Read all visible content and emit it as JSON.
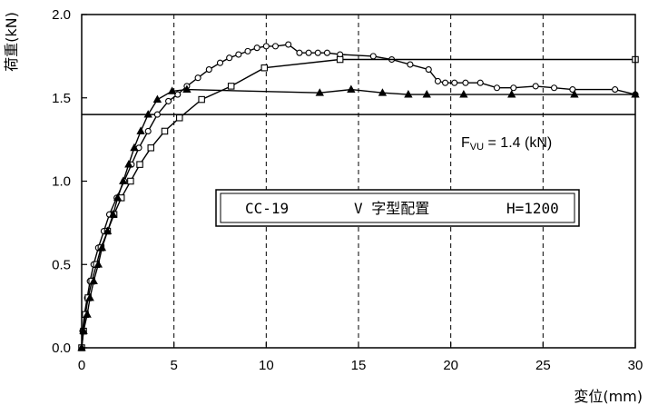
{
  "chart_data": {
    "type": "line",
    "xlabel": "変位(mm)",
    "ylabel": "荷重(kN)",
    "xlim": [
      0,
      30
    ],
    "ylim": [
      0,
      2.0
    ],
    "x_ticks": [
      0,
      5,
      10,
      15,
      20,
      25,
      30
    ],
    "y_ticks": [
      0.0,
      0.5,
      1.0,
      1.5,
      2.0
    ],
    "x_tick_labels": [
      "0",
      "5",
      "10",
      "15",
      "20",
      "25",
      "30"
    ],
    "y_tick_labels": [
      "0.0",
      "0.5",
      "1.0",
      "1.5",
      "2.0"
    ],
    "grid": "vertical dashed at x = 5, 10, 15, 20, 25",
    "reference_line": {
      "y": 1.4,
      "label_main": "F",
      "label_sub": "VU",
      "label_rest": " = 1.4 (kN)"
    },
    "legend_box": {
      "id": "CC-19",
      "config": "V 字型配置",
      "height": "H=1200"
    },
    "series": [
      {
        "marker": "circle",
        "points": [
          [
            0,
            0
          ],
          [
            0.05,
            0.1
          ],
          [
            0.15,
            0.2
          ],
          [
            0.3,
            0.3
          ],
          [
            0.45,
            0.4
          ],
          [
            0.65,
            0.5
          ],
          [
            0.9,
            0.6
          ],
          [
            1.2,
            0.7
          ],
          [
            1.5,
            0.8
          ],
          [
            1.9,
            0.9
          ],
          [
            2.3,
            1.0
          ],
          [
            2.7,
            1.1
          ],
          [
            3.1,
            1.2
          ],
          [
            3.6,
            1.3
          ],
          [
            4.1,
            1.4
          ],
          [
            4.7,
            1.48
          ],
          [
            5.2,
            1.52
          ],
          [
            5.7,
            1.57
          ],
          [
            6.3,
            1.62
          ],
          [
            6.9,
            1.67
          ],
          [
            7.5,
            1.71
          ],
          [
            8.0,
            1.74
          ],
          [
            8.5,
            1.76
          ],
          [
            9.0,
            1.78
          ],
          [
            9.5,
            1.8
          ],
          [
            10.0,
            1.81
          ],
          [
            10.5,
            1.81
          ],
          [
            11.2,
            1.82
          ],
          [
            11.8,
            1.77
          ],
          [
            12.3,
            1.77
          ],
          [
            12.8,
            1.77
          ],
          [
            13.3,
            1.77
          ],
          [
            14.0,
            1.76
          ],
          [
            15.8,
            1.75
          ],
          [
            16.8,
            1.73
          ],
          [
            17.8,
            1.7
          ],
          [
            18.8,
            1.67
          ],
          [
            19.3,
            1.6
          ],
          [
            19.7,
            1.59
          ],
          [
            20.2,
            1.59
          ],
          [
            20.8,
            1.59
          ],
          [
            21.6,
            1.59
          ],
          [
            22.5,
            1.56
          ],
          [
            23.4,
            1.56
          ],
          [
            24.6,
            1.57
          ],
          [
            25.6,
            1.56
          ],
          [
            26.6,
            1.55
          ],
          [
            28.9,
            1.55
          ],
          [
            30.0,
            1.52
          ]
        ]
      },
      {
        "marker": "square",
        "points": [
          [
            0,
            0
          ],
          [
            0.1,
            0.1
          ],
          [
            0.2,
            0.2
          ],
          [
            0.35,
            0.3
          ],
          [
            0.55,
            0.4
          ],
          [
            0.8,
            0.5
          ],
          [
            1.05,
            0.6
          ],
          [
            1.4,
            0.7
          ],
          [
            1.75,
            0.8
          ],
          [
            2.15,
            0.9
          ],
          [
            2.65,
            1.0
          ],
          [
            3.15,
            1.1
          ],
          [
            3.75,
            1.2
          ],
          [
            4.5,
            1.3
          ],
          [
            5.3,
            1.38
          ],
          [
            6.5,
            1.49
          ],
          [
            8.1,
            1.57
          ],
          [
            9.9,
            1.68
          ],
          [
            14.0,
            1.73
          ],
          [
            30.0,
            1.73
          ]
        ]
      },
      {
        "marker": "triangle",
        "points": [
          [
            0,
            0
          ],
          [
            0.1,
            0.1
          ],
          [
            0.3,
            0.2
          ],
          [
            0.45,
            0.3
          ],
          [
            0.65,
            0.4
          ],
          [
            0.9,
            0.5
          ],
          [
            1.1,
            0.6
          ],
          [
            1.4,
            0.7
          ],
          [
            1.7,
            0.8
          ],
          [
            1.95,
            0.9
          ],
          [
            2.25,
            1.0
          ],
          [
            2.55,
            1.1
          ],
          [
            2.85,
            1.2
          ],
          [
            3.2,
            1.3
          ],
          [
            3.6,
            1.4
          ],
          [
            4.1,
            1.49
          ],
          [
            4.9,
            1.54
          ],
          [
            5.7,
            1.55
          ],
          [
            12.9,
            1.53
          ],
          [
            14.6,
            1.55
          ],
          [
            16.3,
            1.53
          ],
          [
            17.7,
            1.52
          ],
          [
            18.7,
            1.52
          ],
          [
            20.7,
            1.52
          ],
          [
            23.3,
            1.52
          ],
          [
            26.7,
            1.52
          ],
          [
            30.0,
            1.52
          ]
        ]
      }
    ]
  }
}
